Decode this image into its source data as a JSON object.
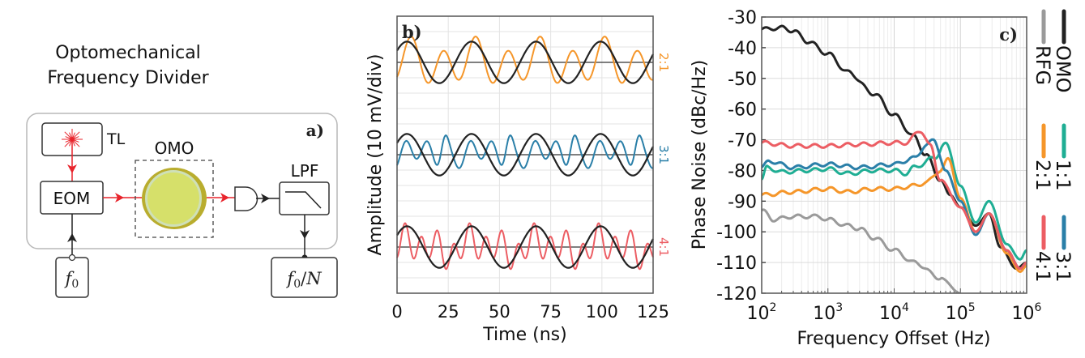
{
  "panel_a": {
    "title_line1": "Optomechanical",
    "title_line2": "Frequency Divider",
    "label": "a)",
    "blocks": {
      "laser": "TL",
      "modulator": "EOM",
      "oscillator": "OMO",
      "filter": "LPF",
      "input": "f0",
      "output": "f0/N"
    },
    "colors": {
      "optical": "#e8232b",
      "electrical": "#222222",
      "resonator_outer": "#b9ad2e",
      "resonator_inner": "#d6e06a"
    }
  },
  "chart_data": [
    {
      "type": "line",
      "panel_label": "b)",
      "title": "",
      "xlabel": "Time (ns)",
      "ylabel": "Amplitude (10 mV/div)",
      "xlim": [
        0,
        125
      ],
      "x_ticks": [
        "0",
        "25",
        "50",
        "75",
        "100",
        "125"
      ],
      "grid": true,
      "reference": {
        "name": "OMO drive",
        "period_ns": 31.5,
        "color": "#222222"
      },
      "series": [
        {
          "name": "2:1",
          "label": "2:1",
          "color": "#f5962a",
          "ratio": 2,
          "offset_div": 6
        },
        {
          "name": "3:1",
          "label": "3:1",
          "color": "#2a7fa8",
          "ratio": 3,
          "offset_div": 0
        },
        {
          "name": "4:1",
          "label": "4:1",
          "color": "#ec5d63",
          "ratio": 4,
          "offset_div": -6
        }
      ]
    },
    {
      "type": "line",
      "panel_label": "c)",
      "title": "",
      "xlabel": "Frequency Offset (Hz)",
      "ylabel": "Phase Noise (dBc/Hz)",
      "xscale": "log",
      "xlim": [
        100,
        1000000
      ],
      "ylim": [
        -120,
        -30
      ],
      "x_ticks": [
        {
          "base": "10",
          "exp": "2"
        },
        {
          "base": "10",
          "exp": "3"
        },
        {
          "base": "10",
          "exp": "4"
        },
        {
          "base": "10",
          "exp": "5"
        },
        {
          "base": "10",
          "exp": "6"
        }
      ],
      "y_ticks": [
        "-30",
        "-40",
        "-50",
        "-60",
        "-70",
        "-80",
        "-90",
        "-100",
        "-110",
        "-120"
      ],
      "grid": true,
      "legend_position": "right",
      "series": [
        {
          "name": "OMO",
          "color": "#222222",
          "x": [
            100,
            200,
            300,
            500,
            1000,
            2000,
            5000,
            10000,
            20000,
            30000,
            50000,
            70000,
            100000,
            170000,
            270000,
            400000,
            700000,
            1000000
          ],
          "y": [
            -34,
            -33.5,
            -34.5,
            -38,
            -42,
            -48,
            -55,
            -62,
            -69,
            -75,
            -83,
            -88,
            -92,
            -98,
            -94,
            -105,
            -112,
            -110
          ]
        },
        {
          "name": "RFG",
          "color": "#9a9a9a",
          "x": [
            100,
            150,
            300,
            700,
            1000,
            2000,
            3000,
            5000,
            10000,
            20000,
            50000,
            100000
          ],
          "y": [
            -93,
            -96,
            -95,
            -95,
            -96,
            -98,
            -99,
            -102,
            -106,
            -110,
            -115,
            -120
          ]
        },
        {
          "name": "1:1",
          "color": "#1fae94",
          "x": [
            100,
            120,
            200,
            500,
            1000,
            2000,
            5000,
            10000,
            15000,
            20000,
            40000,
            60000,
            100000,
            170000,
            270000,
            500000,
            800000,
            1000000
          ],
          "y": [
            -83,
            -79,
            -80.5,
            -80,
            -79.5,
            -81,
            -80,
            -80,
            -81,
            -79,
            -76,
            -71,
            -85,
            -97,
            -90,
            -104,
            -109,
            -106
          ]
        },
        {
          "name": "2:1",
          "color": "#f5962a",
          "x": [
            100,
            300,
            1000,
            2000,
            5000,
            10000,
            20000,
            30000,
            50000,
            65000,
            100000,
            170000,
            270000,
            500000,
            800000,
            1000000
          ],
          "y": [
            -88,
            -87,
            -86,
            -87,
            -86,
            -86,
            -85,
            -84,
            -80,
            -76,
            -89,
            -100,
            -94,
            -107,
            -113,
            -111
          ]
        },
        {
          "name": "3:1",
          "color": "#2a7fa8",
          "x": [
            100,
            130,
            300,
            1000,
            3000,
            10000,
            20000,
            30000,
            40000,
            60000,
            100000,
            170000,
            270000,
            500000,
            800000,
            1000000
          ],
          "y": [
            -79,
            -77,
            -79,
            -78,
            -79,
            -78,
            -76,
            -72,
            -70,
            -80,
            -90,
            -101,
            -94,
            -106,
            -112,
            -110
          ]
        },
        {
          "name": "4:1",
          "color": "#ec5d63",
          "x": [
            100,
            300,
            1000,
            3000,
            10000,
            15000,
            25000,
            35000,
            50000,
            100000,
            170000,
            270000,
            500000,
            800000,
            1000000
          ],
          "y": [
            -71,
            -72,
            -72,
            -71.5,
            -71,
            -71,
            -67,
            -72,
            -83,
            -92,
            -100,
            -94,
            -106,
            -112,
            -110
          ]
        }
      ]
    }
  ]
}
